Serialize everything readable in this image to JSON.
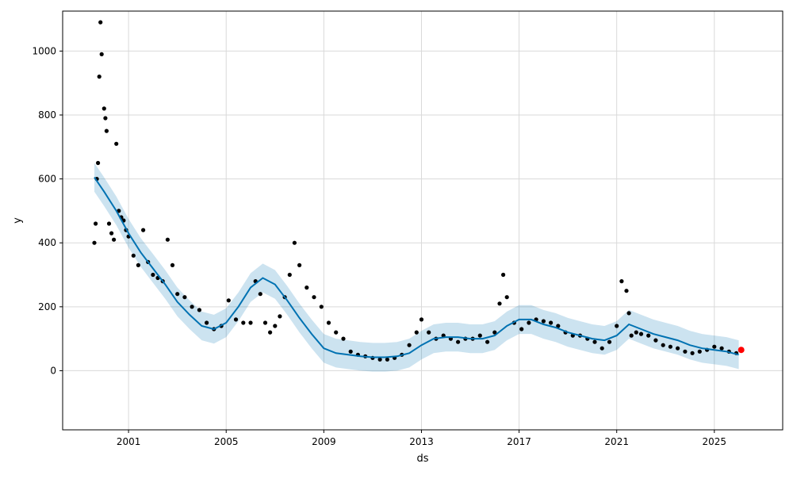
{
  "chart_data": {
    "type": "line",
    "title": "",
    "xlabel": "ds",
    "ylabel": "y",
    "x_ticks": [
      "2001",
      "2005",
      "2009",
      "2013",
      "2017",
      "2021",
      "2025"
    ],
    "x_tick_years": [
      2001,
      2005,
      2009,
      2013,
      2017,
      2021,
      2025
    ],
    "y_ticks": [
      0,
      200,
      400,
      600,
      800,
      1000
    ],
    "xlim": [
      1998.3,
      2027.8
    ],
    "ylim": [
      -185,
      1125
    ],
    "grid": true,
    "colors": {
      "observed": "#000000",
      "forecast": "#0072B2",
      "uncertainty": "#0072B2",
      "highlight": "#ff0000"
    },
    "series": [
      {
        "role": "forecast",
        "x": [
          1999.6,
          2000.0,
          2000.5,
          2001.0,
          2001.5,
          2002.0,
          2002.5,
          2003.0,
          2003.5,
          2004.0,
          2004.5,
          2005.0,
          2005.5,
          2006.0,
          2006.5,
          2007.0,
          2007.5,
          2008.0,
          2008.5,
          2009.0,
          2009.5,
          2010.0,
          2010.5,
          2011.0,
          2011.5,
          2012.0,
          2012.5,
          2013.0,
          2013.5,
          2014.0,
          2014.5,
          2015.0,
          2015.5,
          2016.0,
          2016.5,
          2017.0,
          2017.5,
          2018.0,
          2018.5,
          2019.0,
          2019.5,
          2020.0,
          2020.5,
          2021.0,
          2021.5,
          2022.0,
          2022.5,
          2023.0,
          2023.5,
          2024.0,
          2024.5,
          2025.0,
          2025.5,
          2026.0
        ],
        "y": [
          605,
          560,
          500,
          430,
          370,
          320,
          270,
          215,
          175,
          140,
          130,
          150,
          200,
          260,
          290,
          270,
          220,
          165,
          115,
          70,
          55,
          50,
          45,
          42,
          42,
          45,
          55,
          80,
          100,
          105,
          105,
          100,
          100,
          110,
          140,
          160,
          160,
          145,
          135,
          120,
          110,
          100,
          95,
          110,
          145,
          130,
          115,
          105,
          95,
          80,
          70,
          65,
          60,
          50
        ]
      },
      {
        "role": "uncertainty",
        "x": [
          1999.6,
          2000.0,
          2000.5,
          2001.0,
          2001.5,
          2002.0,
          2002.5,
          2003.0,
          2003.5,
          2004.0,
          2004.5,
          2005.0,
          2005.5,
          2006.0,
          2006.5,
          2007.0,
          2007.5,
          2008.0,
          2008.5,
          2009.0,
          2009.5,
          2010.0,
          2010.5,
          2011.0,
          2011.5,
          2012.0,
          2012.5,
          2013.0,
          2013.5,
          2014.0,
          2014.5,
          2015.0,
          2015.5,
          2016.0,
          2016.5,
          2017.0,
          2017.5,
          2018.0,
          2018.5,
          2019.0,
          2019.5,
          2020.0,
          2020.5,
          2021.0,
          2021.5,
          2022.0,
          2022.5,
          2023.0,
          2023.5,
          2024.0,
          2024.5,
          2025.0,
          2025.5,
          2026.0
        ],
        "lower": [
          560,
          515,
          455,
          385,
          325,
          275,
          225,
          170,
          130,
          95,
          85,
          105,
          155,
          215,
          245,
          225,
          175,
          120,
          70,
          25,
          10,
          5,
          0,
          -3,
          -3,
          0,
          10,
          35,
          55,
          60,
          60,
          55,
          55,
          65,
          95,
          115,
          115,
          100,
          90,
          75,
          65,
          55,
          50,
          65,
          100,
          85,
          70,
          60,
          50,
          35,
          25,
          20,
          15,
          5
        ],
        "upper": [
          650,
          605,
          545,
          475,
          415,
          365,
          315,
          260,
          220,
          185,
          175,
          195,
          245,
          305,
          335,
          315,
          265,
          210,
          160,
          115,
          100,
          95,
          90,
          87,
          87,
          90,
          100,
          125,
          145,
          150,
          150,
          145,
          145,
          155,
          185,
          205,
          205,
          190,
          180,
          165,
          155,
          145,
          140,
          155,
          190,
          175,
          160,
          150,
          140,
          125,
          115,
          110,
          105,
          95
        ]
      },
      {
        "role": "observed",
        "x": [
          1999.6,
          1999.65,
          1999.7,
          1999.75,
          1999.8,
          1999.85,
          1999.9,
          2000.0,
          2000.05,
          2000.1,
          2000.2,
          2000.3,
          2000.4,
          2000.5,
          2000.6,
          2000.7,
          2000.8,
          2000.9,
          2001.0,
          2001.2,
          2001.4,
          2001.6,
          2001.8,
          2002.0,
          2002.2,
          2002.4,
          2002.6,
          2002.8,
          2003.0,
          2003.3,
          2003.6,
          2003.9,
          2004.2,
          2004.5,
          2004.8,
          2005.1,
          2005.4,
          2005.7,
          2006.0,
          2006.2,
          2006.4,
          2006.6,
          2006.8,
          2007.0,
          2007.2,
          2007.4,
          2007.6,
          2007.8,
          2008.0,
          2008.3,
          2008.6,
          2008.9,
          2009.2,
          2009.5,
          2009.8,
          2010.1,
          2010.4,
          2010.7,
          2011.0,
          2011.3,
          2011.6,
          2011.9,
          2012.2,
          2012.5,
          2012.8,
          2013.0,
          2013.3,
          2013.6,
          2013.9,
          2014.2,
          2014.5,
          2014.8,
          2015.1,
          2015.4,
          2015.7,
          2016.0,
          2016.2,
          2016.35,
          2016.5,
          2016.8,
          2017.1,
          2017.4,
          2017.7,
          2018.0,
          2018.3,
          2018.6,
          2018.9,
          2019.2,
          2019.5,
          2019.8,
          2020.1,
          2020.4,
          2020.7,
          2021.0,
          2021.2,
          2021.4,
          2021.5,
          2021.6,
          2021.8,
          2022.0,
          2022.3,
          2022.6,
          2022.9,
          2023.2,
          2023.5,
          2023.8,
          2024.1,
          2024.4,
          2024.7,
          2025.0,
          2025.3,
          2025.6,
          2025.9
        ],
        "y": [
          400,
          460,
          600,
          650,
          920,
          1090,
          990,
          820,
          790,
          750,
          460,
          430,
          410,
          710,
          500,
          480,
          470,
          440,
          420,
          360,
          330,
          440,
          340,
          300,
          290,
          280,
          410,
          330,
          240,
          230,
          200,
          190,
          150,
          130,
          140,
          220,
          160,
          150,
          150,
          280,
          240,
          150,
          120,
          140,
          170,
          230,
          300,
          400,
          330,
          260,
          230,
          200,
          150,
          120,
          100,
          60,
          50,
          45,
          40,
          35,
          35,
          40,
          50,
          80,
          120,
          160,
          120,
          100,
          110,
          100,
          90,
          100,
          100,
          110,
          90,
          120,
          210,
          300,
          230,
          150,
          130,
          150,
          160,
          155,
          150,
          140,
          120,
          110,
          110,
          100,
          90,
          70,
          90,
          140,
          280,
          250,
          180,
          110,
          120,
          115,
          110,
          95,
          80,
          75,
          70,
          60,
          55,
          60,
          65,
          75,
          70,
          60,
          55
        ]
      },
      {
        "role": "highlight",
        "x": [
          2026.1
        ],
        "y": [
          65
        ]
      }
    ]
  }
}
